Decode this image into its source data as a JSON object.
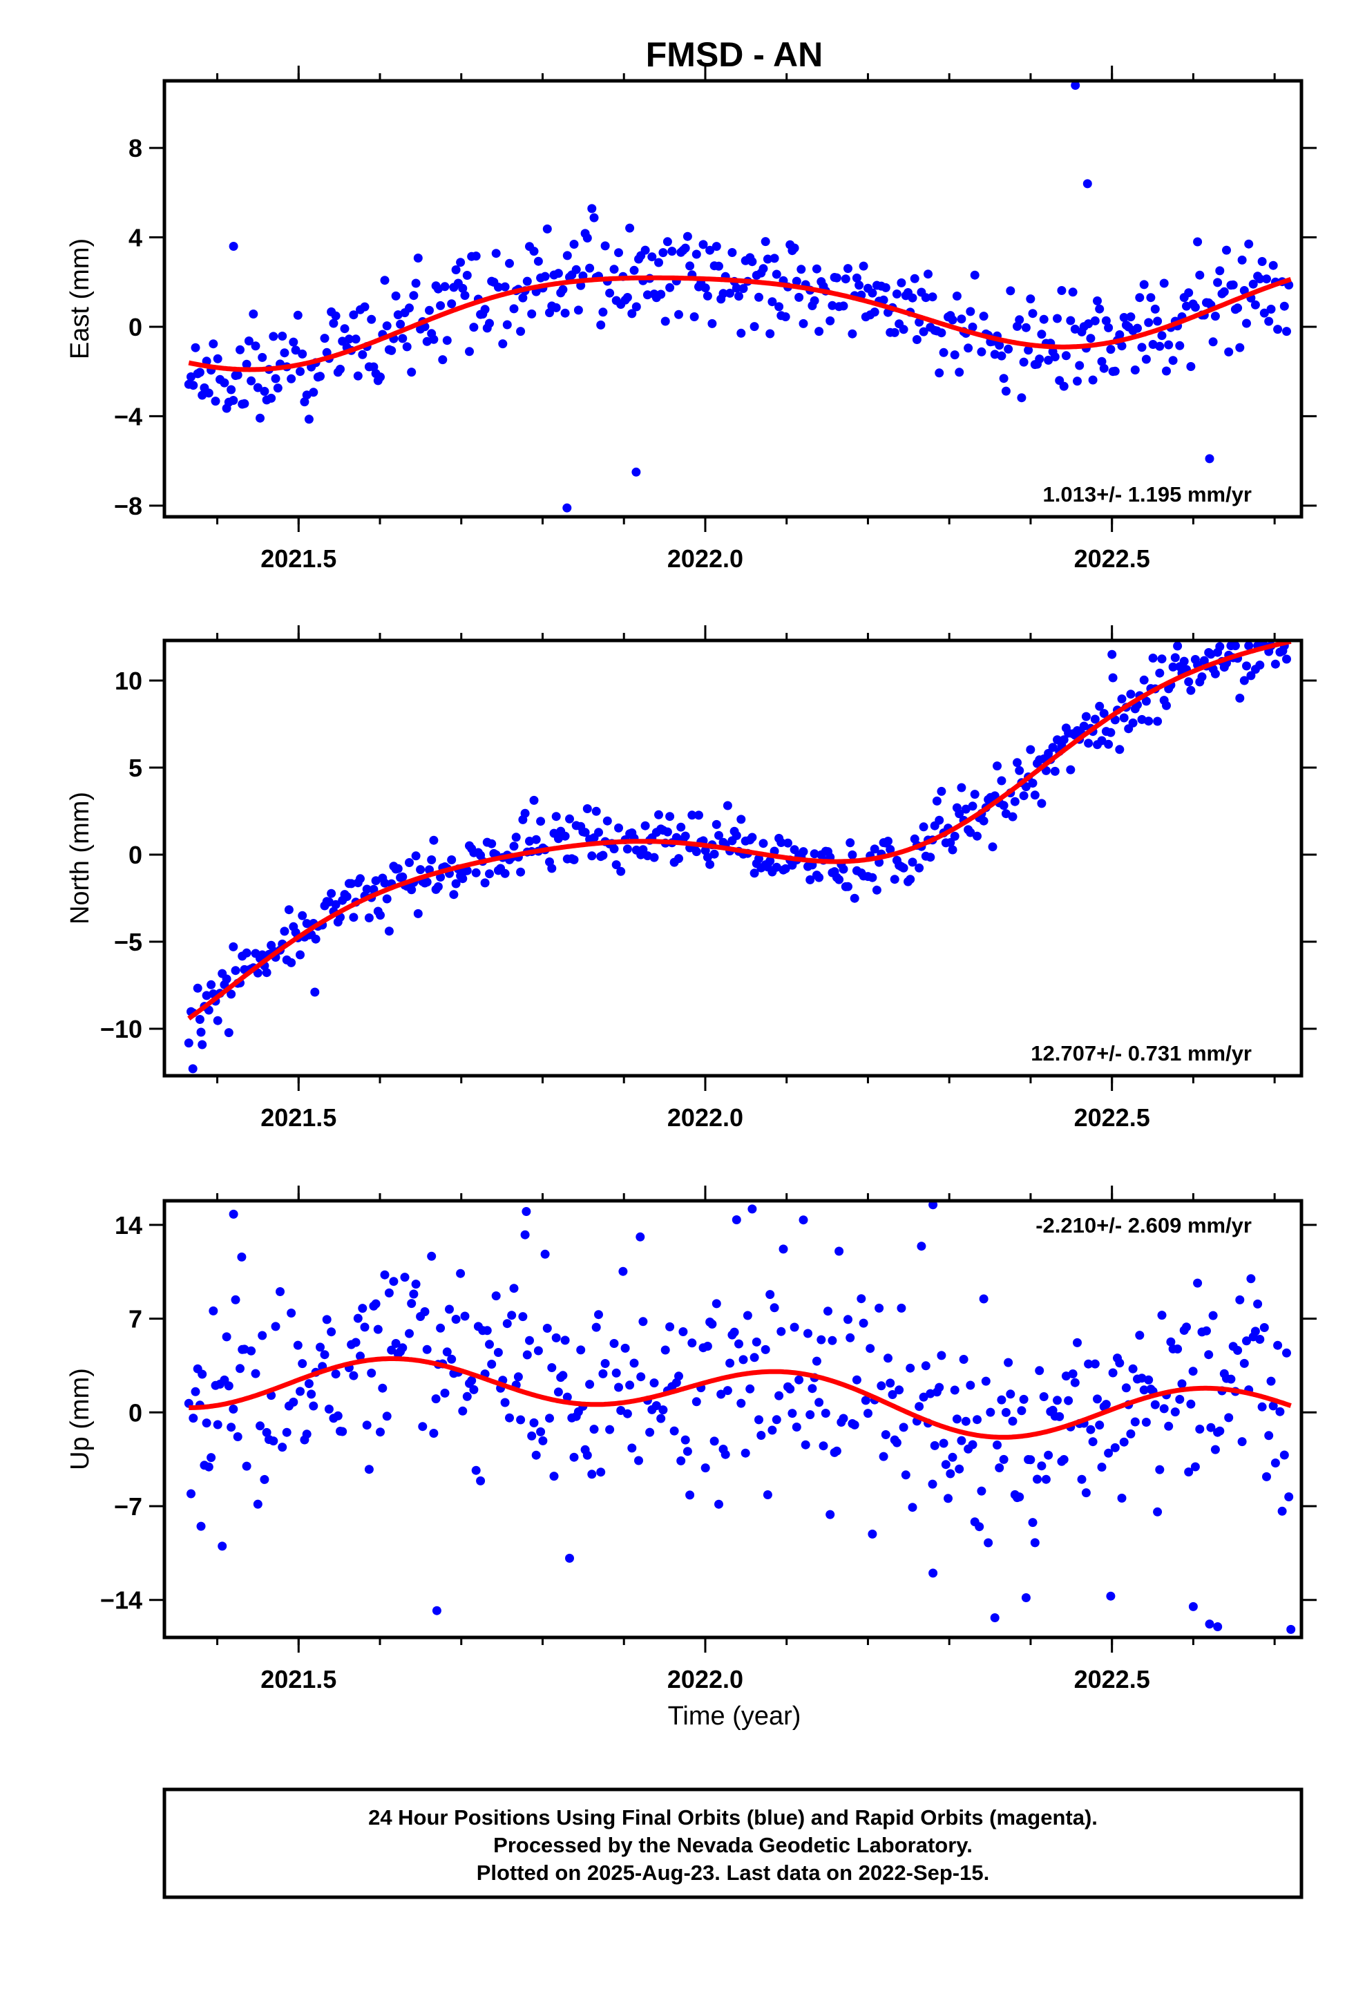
{
  "title": "FMSD - AN",
  "time_axis_label": "Time (year)",
  "colors": {
    "data": "#0000ff",
    "model": "#ff0000",
    "frame": "#000000"
  },
  "caption": {
    "line1": "24 Hour Positions Using Final Orbits (blue) and Rapid Orbits (magenta).",
    "line2": "Processed by the Nevada Geodetic Laboratory.",
    "line3": "Plotted on 2025-Aug-23. Last data on 2022-Sep-15."
  },
  "chart_data": [
    {
      "type": "scatter",
      "ylabel": "East (mm)",
      "rate_text": "1.013+/- 1.195 mm/yr",
      "rate_position": "bottom-right",
      "xlim": [
        2021.335,
        2022.733
      ],
      "ylim": [
        -8.5,
        11.0
      ],
      "x_ticks": [
        2021.5,
        2022.0,
        2022.5
      ],
      "x_tick_labels": [
        "2021.5",
        "2022.0",
        "2022.5"
      ],
      "y_ticks": [
        -8,
        -4,
        0,
        4,
        8
      ],
      "y_tick_labels": [
        "−8",
        "−4",
        "0",
        "4",
        "8"
      ],
      "model": {
        "x0": 2021.365,
        "x1": 2022.72,
        "offset": 0.1,
        "trend": 1.013,
        "annual": [
          -0.67,
          1.67
        ],
        "semi": [
          0.14,
          -0.27
        ],
        "jitter": 1.1,
        "seed": 11
      },
      "outliers": [
        [
          2022.455,
          10.8
        ],
        [
          2021.83,
          -8.1
        ],
        [
          2022.62,
          -5.9
        ],
        [
          2021.915,
          -6.5
        ],
        [
          2021.42,
          3.6
        ],
        [
          2022.47,
          6.4
        ]
      ]
    },
    {
      "type": "scatter",
      "ylabel": "North (mm)",
      "rate_text": "12.707+/- 0.731 mm/yr",
      "rate_position": "bottom-right",
      "xlim": [
        2021.335,
        2022.733
      ],
      "ylim": [
        -12.7,
        12.3
      ],
      "x_ticks": [
        2021.5,
        2022.0,
        2022.5
      ],
      "x_tick_labels": [
        "2021.5",
        "2022.0",
        "2022.5"
      ],
      "y_ticks": [
        -10,
        -5,
        0,
        5,
        10
      ],
      "y_tick_labels": [
        "−10",
        "−5",
        "0",
        "5",
        "10"
      ],
      "model": {
        "x0": 2021.365,
        "x1": 2022.72,
        "offset": -7.5,
        "trend": 12.707,
        "annual": [
          -2.95,
          -0.55
        ],
        "semi": [
          0.0,
          0.51
        ],
        "jitter": 0.9,
        "seed": 23
      },
      "outliers": [
        [
          2021.37,
          -12.3
        ],
        [
          2021.38,
          -10.2
        ],
        [
          2022.5,
          11.5
        ],
        [
          2022.71,
          11.7
        ],
        [
          2021.52,
          -7.9
        ]
      ]
    },
    {
      "type": "scatter",
      "ylabel": "Up (mm)",
      "rate_text": "-2.210+/- 2.609 mm/yr",
      "rate_position": "top-right",
      "xlim": [
        2021.335,
        2022.733
      ],
      "ylim": [
        -16.8,
        15.8
      ],
      "x_ticks": [
        2021.5,
        2022.0,
        2022.5
      ],
      "x_tick_labels": [
        "2021.5",
        "2022.0",
        "2022.5"
      ],
      "y_ticks": [
        -14,
        -7,
        0,
        7,
        14
      ],
      "y_tick_labels": [
        "−14",
        "−7",
        "0",
        "7",
        "14"
      ],
      "model": {
        "x0": 2021.365,
        "x1": 2022.72,
        "offset": 2.8,
        "trend": -2.21,
        "annual": [
          -0.5,
          0.45
        ],
        "semi": [
          1.74,
          0.38
        ],
        "jitter": 4.2,
        "seed": 37
      },
      "outliers": [
        [
          2021.42,
          14.8
        ],
        [
          2021.78,
          15.0
        ],
        [
          2022.28,
          15.5
        ],
        [
          2021.67,
          -14.8
        ],
        [
          2022.6,
          -14.5
        ],
        [
          2022.62,
          -15.8
        ],
        [
          2022.72,
          -16.2
        ],
        [
          2022.63,
          -16.0
        ],
        [
          2021.92,
          13.1
        ],
        [
          2021.38,
          -8.5
        ],
        [
          2022.28,
          -12.0
        ],
        [
          2021.43,
          11.6
        ]
      ]
    }
  ]
}
